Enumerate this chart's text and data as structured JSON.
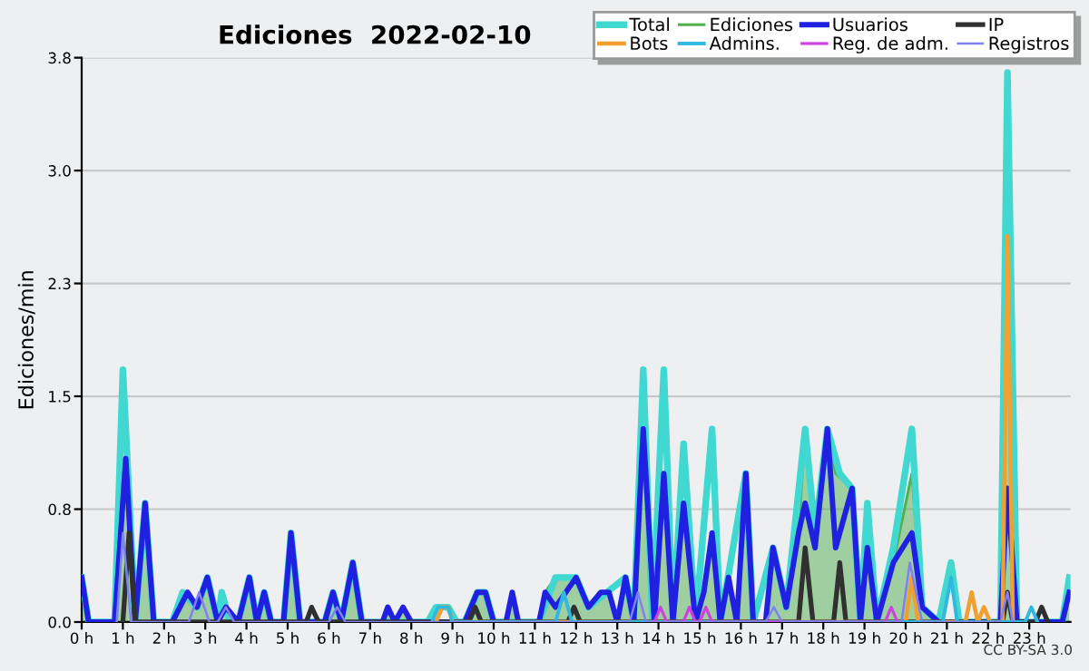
{
  "chart_data": {
    "type": "line",
    "title": "Ediciones  2022-02-10",
    "ylabel": "Ediciones/min",
    "annotations": [
      "CC BY-SA 3.0"
    ],
    "x": [
      0,
      0.17,
      0.8,
      1.07,
      1.3,
      1.54,
      1.75,
      2.2,
      2.57,
      2.8,
      3.05,
      3.3,
      3.5,
      3.8,
      4.07,
      4.25,
      4.43,
      4.6,
      4.9,
      5.08,
      5.3,
      5.9,
      6.1,
      6.3,
      6.58,
      6.8,
      7.3,
      7.43,
      7.6,
      7.8,
      8.0,
      9.3,
      9.6,
      9.8,
      10.0,
      10.3,
      10.45,
      10.6,
      11.1,
      11.25,
      11.5,
      12.0,
      12.3,
      12.6,
      12.8,
      13.0,
      13.2,
      13.4,
      13.63,
      13.9,
      14.13,
      14.35,
      14.61,
      14.9,
      15.1,
      15.3,
      15.5,
      15.7,
      15.9,
      16.12,
      16.3,
      16.6,
      16.78,
      17.1,
      17.4,
      17.56,
      17.8,
      18.1,
      18.3,
      18.7,
      18.9,
      19.07,
      19.3,
      19.7,
      20.15,
      20.4,
      20.8,
      22.3,
      22.47,
      22.7,
      23.8,
      23.97
    ],
    "series": [
      {
        "name": "Total",
        "color": "#40d8d0",
        "x": [
          0,
          0.17,
          0.8,
          1.0,
          1.3,
          1.54,
          1.75,
          2.2,
          2.45,
          2.8,
          3.05,
          3.3,
          3.4,
          3.6,
          3.8,
          4.07,
          4.25,
          4.43,
          4.6,
          4.9,
          5.08,
          5.3,
          5.9,
          6.1,
          6.3,
          6.58,
          6.8,
          8.4,
          8.6,
          8.9,
          9.1,
          9.3,
          9.6,
          9.8,
          10.0,
          11.1,
          11.5,
          12.0,
          12.3,
          13.2,
          13.4,
          13.63,
          13.85,
          14.13,
          14.35,
          14.61,
          14.9,
          15.3,
          15.5,
          16.12,
          16.3,
          16.78,
          17.1,
          17.56,
          17.8,
          18.1,
          18.4,
          18.7,
          18.9,
          19.07,
          19.3,
          19.7,
          20.15,
          20.4,
          20.8,
          21.1,
          21.3,
          22.3,
          22.47,
          22.7,
          23.8,
          23.97
        ],
        "values": [
          0.3,
          0,
          0,
          1.7,
          0,
          0.8,
          0,
          0,
          0.2,
          0.1,
          0.3,
          0,
          0.2,
          0,
          0,
          0.3,
          0,
          0.2,
          0,
          0,
          0.6,
          0,
          0,
          0.2,
          0,
          0.4,
          0,
          0,
          0.1,
          0.1,
          0,
          0,
          0.2,
          0.2,
          0,
          0,
          0.3,
          0.3,
          0.1,
          0.3,
          0,
          1.7,
          0,
          1.7,
          0,
          1.2,
          0,
          1.3,
          0,
          1.0,
          0,
          0.5,
          0.1,
          1.3,
          0.6,
          1.3,
          1.0,
          0.9,
          0,
          0.8,
          0,
          0.5,
          1.3,
          0.1,
          0,
          0.4,
          0,
          0,
          3.7,
          0,
          0,
          0.3
        ]
      },
      {
        "name": "Ediciones",
        "type": "area",
        "color": "#50b050",
        "values": [
          0.3,
          0,
          0,
          1.1,
          0,
          0.8,
          0,
          0,
          0.2,
          0.1,
          0.3,
          0,
          0.1,
          0,
          0.3,
          0,
          0.2,
          0,
          0,
          0.6,
          0,
          0,
          0.2,
          0,
          0.4,
          0,
          0,
          0.1,
          0,
          0.1,
          0,
          0,
          0.2,
          0.2,
          0,
          0,
          0.2,
          0,
          0,
          0.2,
          0.3,
          0.3,
          0.1,
          0.2,
          0.2,
          0,
          0.3,
          0,
          1.3,
          0,
          1.0,
          0,
          0.8,
          0,
          0.2,
          0.6,
          0,
          0.3,
          0,
          1.0,
          0,
          0,
          0.5,
          0.1,
          0.6,
          1.3,
          0.5,
          1.3,
          1.0,
          0.9,
          0,
          0.5,
          0,
          0.4,
          1.0,
          0.1,
          0,
          0,
          3.6,
          0,
          0,
          0.2
        ]
      },
      {
        "name": "Usuarios",
        "color": "#2020e0",
        "values": [
          0.3,
          0,
          0,
          1.1,
          0,
          0.8,
          0,
          0,
          0.2,
          0.1,
          0.3,
          0,
          0.1,
          0,
          0.3,
          0,
          0.2,
          0,
          0,
          0.6,
          0,
          0,
          0.2,
          0,
          0.4,
          0,
          0,
          0.1,
          0,
          0.1,
          0,
          0,
          0.2,
          0.2,
          0,
          0,
          0.2,
          0,
          0,
          0.2,
          0.1,
          0.3,
          0.1,
          0.2,
          0.2,
          0,
          0.3,
          0,
          1.3,
          0,
          1.0,
          0,
          0.8,
          0,
          0.2,
          0.6,
          0,
          0.3,
          0,
          1.0,
          0,
          0,
          0.5,
          0.1,
          0.6,
          0.8,
          0.5,
          1.3,
          0.5,
          0.9,
          0,
          0.5,
          0,
          0.4,
          0.6,
          0.1,
          0,
          0,
          0.9,
          0,
          0,
          0.2
        ]
      },
      {
        "name": "IP",
        "color": "#303030",
        "x": [
          1.0,
          1.15,
          1.3,
          5.45,
          5.58,
          5.75,
          9.4,
          9.55,
          9.7,
          11.8,
          11.95,
          12.1,
          17.4,
          17.56,
          17.75,
          18.25,
          18.4,
          18.55,
          22.35,
          22.47,
          22.6,
          23.15,
          23.3,
          23.45
        ],
        "values": [
          0,
          0.6,
          0,
          0,
          0.1,
          0,
          0,
          0.1,
          0,
          0,
          0.1,
          0,
          0,
          0.5,
          0,
          0,
          0.4,
          0,
          0,
          0.2,
          0,
          0,
          0.1,
          0
        ]
      },
      {
        "name": "Bots",
        "color": "#f0a030",
        "x": [
          8.6,
          8.75,
          8.9,
          9.0,
          20.0,
          20.15,
          20.3,
          21.45,
          21.6,
          21.75,
          21.9,
          22.05,
          22.35,
          22.47,
          22.6
        ],
        "values": [
          0,
          0.1,
          0.1,
          0,
          0,
          0.3,
          0,
          0,
          0.2,
          0,
          0.1,
          0,
          0,
          2.6,
          0
        ]
      },
      {
        "name": "Admins.",
        "color": "#30b8e0",
        "x": [
          8.5,
          8.65,
          8.9,
          9.0,
          11.5,
          11.7,
          11.9,
          20.9,
          21.1,
          21.25,
          22.9,
          23.05,
          23.2
        ],
        "values": [
          0,
          0.1,
          0.1,
          0,
          0,
          0.2,
          0,
          0,
          0.3,
          0,
          0,
          0.1,
          0
        ]
      },
      {
        "name": "Reg. de adm.",
        "color": "#d040e0",
        "x": [
          13.9,
          14.05,
          14.2,
          14.6,
          14.75,
          14.9,
          15.0,
          15.15,
          15.3,
          19.5,
          19.65,
          19.8
        ],
        "values": [
          0,
          0.1,
          0,
          0,
          0.1,
          0,
          0,
          0.1,
          0,
          0,
          0.1,
          0
        ]
      },
      {
        "name": "Registros",
        "color": "#8080f0",
        "x": [
          0.85,
          1.0,
          1.2,
          2.6,
          2.85,
          3.1,
          3.3,
          3.5,
          3.7,
          6.0,
          6.2,
          6.4,
          13.3,
          13.5,
          13.7,
          16.6,
          16.8,
          17.0,
          19.9,
          20.1,
          20.4,
          22.3,
          22.47,
          22.6
        ],
        "values": [
          0,
          0.6,
          0,
          0,
          0.2,
          0,
          0,
          0.1,
          0,
          0,
          0.1,
          0,
          0,
          0.2,
          0,
          0,
          0.1,
          0,
          0,
          0.4,
          0,
          0,
          0.2,
          0
        ]
      }
    ],
    "xlim": [
      0,
      24
    ],
    "xticks": [
      {
        "value": 0,
        "label": "0 h"
      },
      {
        "value": 1,
        "label": "1 h"
      },
      {
        "value": 2,
        "label": "2 h"
      },
      {
        "value": 3,
        "label": "3 h"
      },
      {
        "value": 4,
        "label": "4 h"
      },
      {
        "value": 5,
        "label": "5 h"
      },
      {
        "value": 6,
        "label": "6 h"
      },
      {
        "value": 7,
        "label": "7 h"
      },
      {
        "value": 8,
        "label": "8 h"
      },
      {
        "value": 9,
        "label": "9 h"
      },
      {
        "value": 10,
        "label": "10 h"
      },
      {
        "value": 11,
        "label": "11 h"
      },
      {
        "value": 12,
        "label": "12 h"
      },
      {
        "value": 13,
        "label": "13 h"
      },
      {
        "value": 14,
        "label": "14 h"
      },
      {
        "value": 15,
        "label": "15 h"
      },
      {
        "value": 16,
        "label": "16 h"
      },
      {
        "value": 17,
        "label": "17 h"
      },
      {
        "value": 18,
        "label": "18 h"
      },
      {
        "value": 19,
        "label": "19 h"
      },
      {
        "value": 20,
        "label": "20 h"
      },
      {
        "value": 21,
        "label": "21 h"
      },
      {
        "value": 22,
        "label": "22 h"
      },
      {
        "value": 23,
        "label": "23 h"
      }
    ],
    "ylim": [
      0,
      3.8
    ],
    "yticks": [
      {
        "value": 0,
        "label": "0.0"
      },
      {
        "value": 0.76,
        "label": "0.8"
      },
      {
        "value": 1.52,
        "label": "1.5"
      },
      {
        "value": 2.28,
        "label": "2.3"
      },
      {
        "value": 3.04,
        "label": "3.0"
      },
      3.8
    ],
    "grid": "y",
    "legend": "top right"
  }
}
